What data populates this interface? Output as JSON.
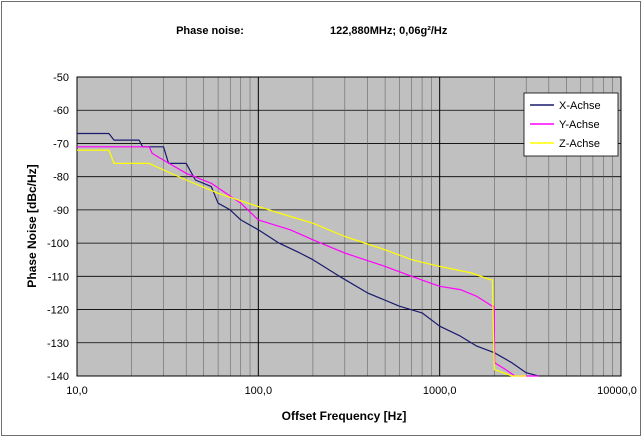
{
  "chart_data": {
    "type": "line",
    "title_left": "Phase noise:",
    "title_right": "122,880MHz;   0,06g²/Hz",
    "xlabel": "Offset Frequency [Hz]",
    "ylabel": "Phase Noise [dBc/Hz]",
    "x_scale": "log",
    "xlim": [
      10,
      10000
    ],
    "ylim": [
      -140,
      -50
    ],
    "x_ticks": [
      10,
      100,
      1000,
      10000
    ],
    "x_tick_labels": [
      "10,0",
      "100,0",
      "1000,0",
      "10000,0"
    ],
    "y_ticks": [
      -50,
      -60,
      -70,
      -80,
      -90,
      -100,
      -110,
      -120,
      -130,
      -140
    ],
    "y_tick_labels": [
      "-50",
      "-60",
      "-70",
      "-80",
      "-90",
      "-100",
      "-110",
      "-120",
      "-130",
      "-140"
    ],
    "grid": true,
    "legend_position": "top-right",
    "colors": {
      "plot_bg": "#c0c0c0",
      "grid": "#000000"
    },
    "series": [
      {
        "name": "X-Achse",
        "color": "#1a1a6e",
        "points": [
          [
            10,
            -67
          ],
          [
            15,
            -67
          ],
          [
            16,
            -69
          ],
          [
            22,
            -69
          ],
          [
            23,
            -71
          ],
          [
            30,
            -71
          ],
          [
            32,
            -76
          ],
          [
            40,
            -76
          ],
          [
            45,
            -81
          ],
          [
            55,
            -83
          ],
          [
            60,
            -88
          ],
          [
            70,
            -90
          ],
          [
            80,
            -93
          ],
          [
            100,
            -96
          ],
          [
            130,
            -100
          ],
          [
            170,
            -103
          ],
          [
            200,
            -105
          ],
          [
            280,
            -110
          ],
          [
            400,
            -115
          ],
          [
            600,
            -119
          ],
          [
            800,
            -121
          ],
          [
            1000,
            -125
          ],
          [
            1300,
            -128
          ],
          [
            1600,
            -131
          ],
          [
            2000,
            -133
          ],
          [
            2500,
            -136
          ],
          [
            3000,
            -139
          ],
          [
            3500,
            -140
          ]
        ]
      },
      {
        "name": "Y-Achse",
        "color": "#ff00ff",
        "points": [
          [
            10,
            -71
          ],
          [
            25,
            -71
          ],
          [
            26,
            -73
          ],
          [
            30,
            -75
          ],
          [
            40,
            -79
          ],
          [
            55,
            -82
          ],
          [
            80,
            -88
          ],
          [
            100,
            -93
          ],
          [
            150,
            -96
          ],
          [
            200,
            -99
          ],
          [
            300,
            -103
          ],
          [
            500,
            -107
          ],
          [
            700,
            -110
          ],
          [
            1000,
            -113
          ],
          [
            1300,
            -114
          ],
          [
            1600,
            -116
          ],
          [
            1950,
            -119
          ],
          [
            2000,
            -119
          ],
          [
            2010,
            -136
          ],
          [
            2300,
            -138
          ],
          [
            2600,
            -140
          ],
          [
            3500,
            -140
          ]
        ]
      },
      {
        "name": "Z-Achse",
        "color": "#ffff00",
        "points": [
          [
            10,
            -72
          ],
          [
            15,
            -72
          ],
          [
            16,
            -76
          ],
          [
            25,
            -76
          ],
          [
            30,
            -78
          ],
          [
            40,
            -81
          ],
          [
            60,
            -85
          ],
          [
            100,
            -89
          ],
          [
            150,
            -92
          ],
          [
            200,
            -94
          ],
          [
            300,
            -98
          ],
          [
            500,
            -102
          ],
          [
            700,
            -105
          ],
          [
            1000,
            -107
          ],
          [
            1500,
            -109
          ],
          [
            1900,
            -111
          ],
          [
            1950,
            -111
          ],
          [
            2000,
            -138
          ],
          [
            2500,
            -140
          ],
          [
            3000,
            -140
          ]
        ]
      }
    ]
  }
}
